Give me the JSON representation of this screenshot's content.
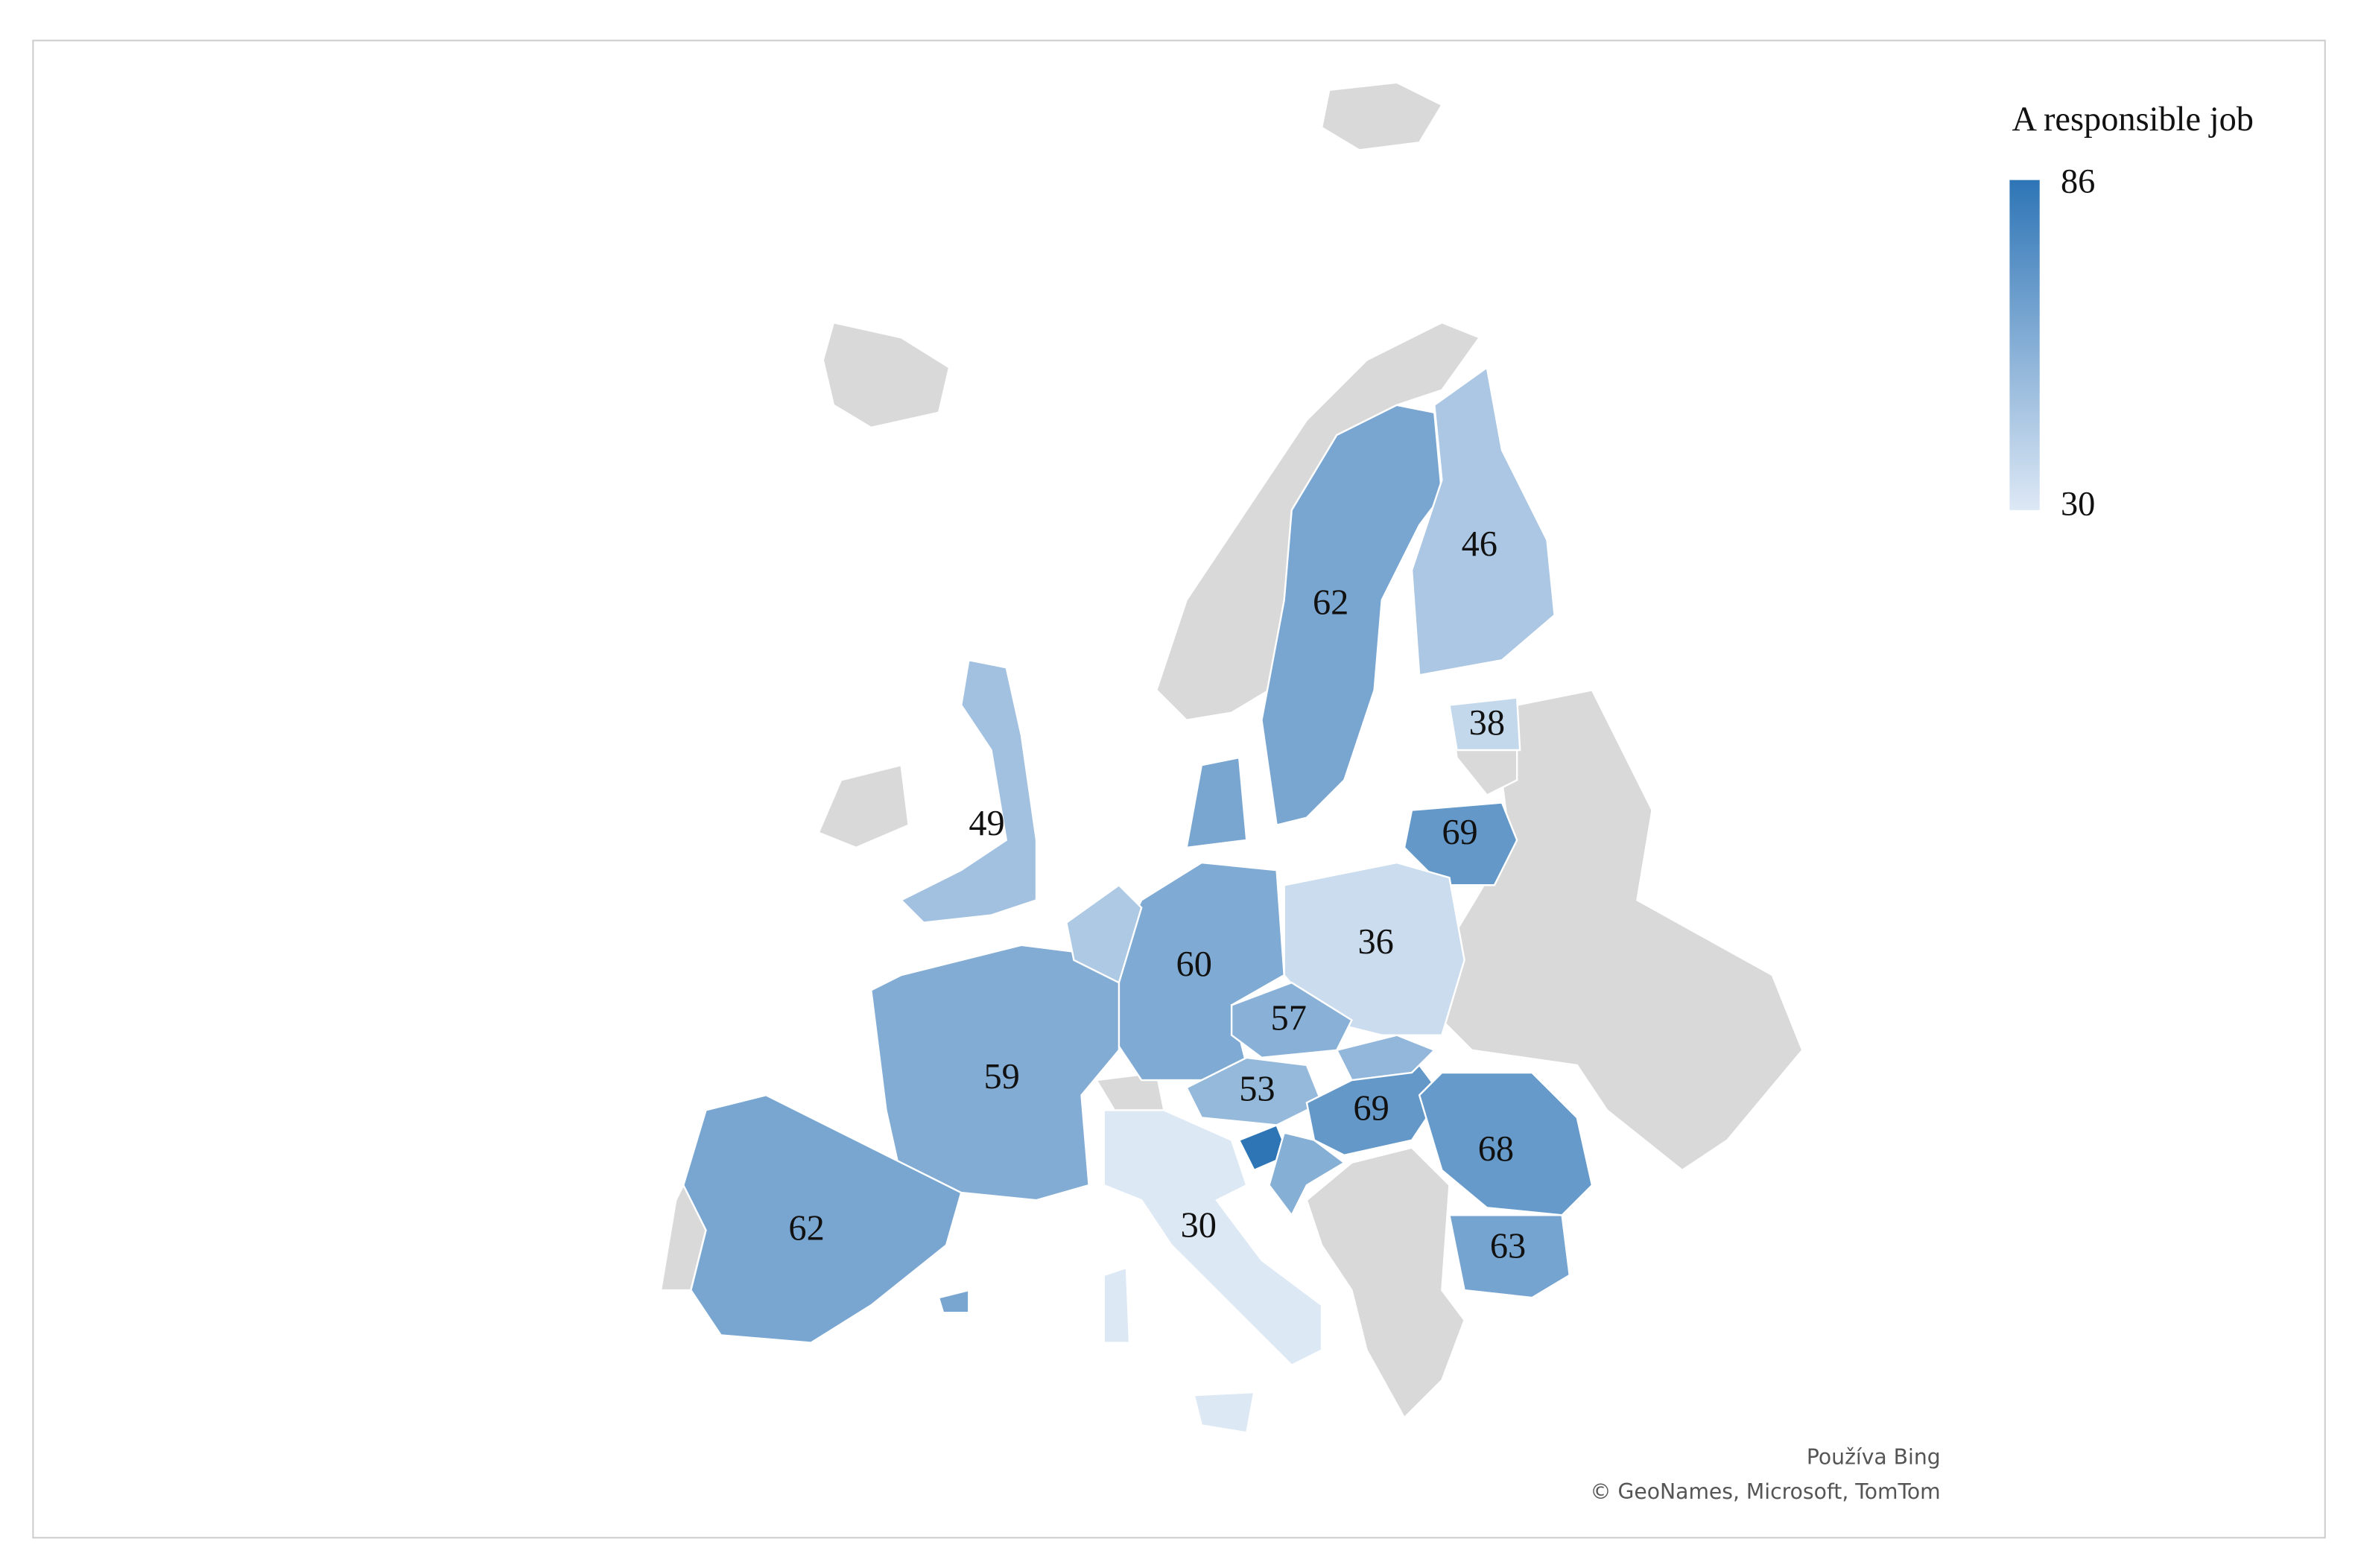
{
  "chart_data": {
    "type": "choropleth",
    "legend": {
      "title": "A responsible job",
      "max": 86,
      "min": 30,
      "color_min": "#dde8f5",
      "color_max": "#2e75b6"
    },
    "regions": [
      {
        "value": 62
      },
      {
        "value": 46
      },
      {
        "value": 38
      },
      {
        "value": 69
      },
      {
        "value": 49
      },
      {
        "value": 36
      },
      {
        "value": 60
      },
      {
        "value": 57
      },
      {
        "value": 59
      },
      {
        "value": 53
      },
      {
        "value": 69
      },
      {
        "value": 68
      },
      {
        "value": 63
      },
      {
        "value": 62
      },
      {
        "value": 30
      },
      {
        "value": 86
      },
      {
        "value": 62
      },
      {
        "value": 54
      },
      {
        "value": 58
      },
      {
        "value": 45
      }
    ],
    "attribution": [
      "Používa Bing",
      "© GeoNames, Microsoft, TomTom"
    ]
  }
}
